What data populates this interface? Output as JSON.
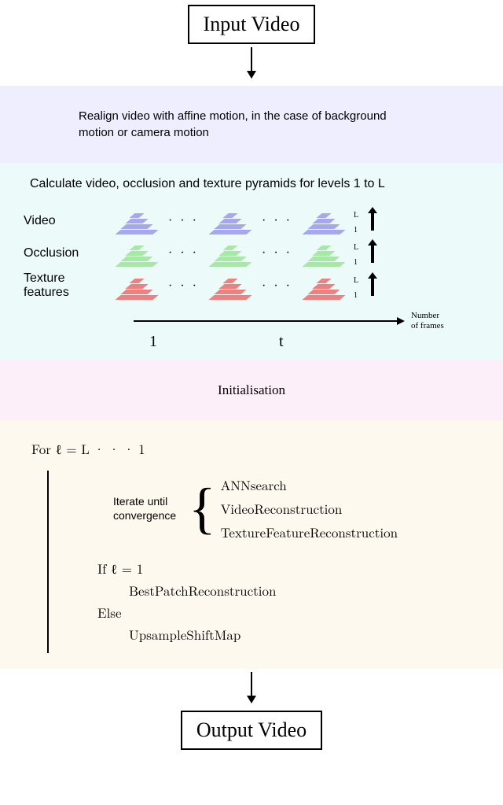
{
  "io": {
    "input_label": "Input Video",
    "output_label": "Output Video"
  },
  "sections": {
    "realign": {
      "bg": "#eeeeff",
      "text": "Realign video with affine motion, in the case of background motion or camera motion",
      "font_family": "Arial, sans-serif",
      "font_size": 15
    },
    "pyramids": {
      "bg": "#edfafa",
      "title": "Calculate video, occlusion and texture pyramids for levels 1 to L",
      "rows": [
        {
          "label": "Video",
          "color": "#a7a7f0"
        },
        {
          "label": "Occlusion",
          "color": "#a7e8a7"
        },
        {
          "label": "Texture features",
          "color": "#f08080"
        }
      ],
      "layer_widths": [
        12,
        22,
        34,
        48
      ],
      "top_tick": "L",
      "bottom_tick": "1",
      "dots": "· · ·",
      "timeline": {
        "start": "1",
        "mid": "t",
        "caption_l1": "Number",
        "caption_l2": "of frames"
      }
    },
    "init": {
      "bg": "#fdeff9",
      "text": "Initialisation",
      "font_size": 17
    },
    "algorithm": {
      "bg": "#fef9ef",
      "for_line": "For ℓ = L · · · 1",
      "iterate_label_l1": "Iterate until",
      "iterate_label_l2": "convergence",
      "iterate_items": [
        "ANNsearch",
        "VideoReconstruction",
        "TextureFeatureReconstruction"
      ],
      "if_line": "If ℓ = 1",
      "if_body": "BestPatchReconstruction",
      "else_line": "Else",
      "else_body": "UpsampleShiftMap"
    }
  },
  "colors": {
    "border": "#000000",
    "text": "#000000"
  }
}
